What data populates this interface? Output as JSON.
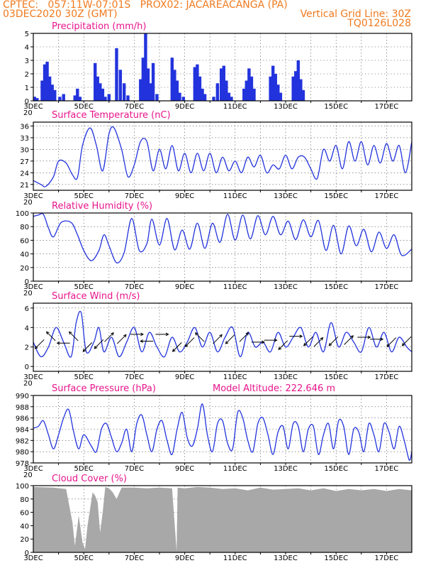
{
  "header": {
    "line1_left": "CPTEC:   057:11W-07:01S   PROX02: JACAREACANGA (PA)",
    "line2_left": "03DEC2020 30Z (GMT)",
    "line2_right": "Vertical Grid Line: 30Z",
    "line3_right": "TQ0126L028"
  },
  "x_axis": {
    "ticks": [
      "3DEC",
      "5DEC",
      "7DEC",
      "9DEC",
      "11DEC",
      "13DEC",
      "15DEC",
      "17DEC"
    ],
    "partial_label": "20"
  },
  "colors": {
    "line": "#2233dd",
    "bar": "#2233dd",
    "title": "#e8158c",
    "header": "#f07a1e",
    "cloud": "#a8a8a8"
  },
  "chart_data": [
    {
      "type": "bar",
      "title": "Precipitation (mm/h)",
      "ylim": [
        0,
        5
      ],
      "yticks": [
        "0",
        "1",
        "2",
        "3",
        "4",
        "5"
      ],
      "x": [
        3.05,
        3.15,
        3.35,
        3.45,
        3.55,
        3.65,
        3.75,
        3.85,
        4.05,
        4.2,
        4.65,
        4.75,
        4.85,
        5.45,
        5.55,
        5.65,
        5.75,
        5.85,
        6.0,
        6.3,
        6.45,
        6.6,
        6.75,
        7.25,
        7.35,
        7.45,
        7.55,
        7.65,
        7.75,
        7.9,
        8.5,
        8.6,
        8.7,
        8.8,
        8.95,
        9.4,
        9.5,
        9.6,
        9.7,
        9.8,
        10.15,
        10.3,
        10.45,
        10.55,
        10.65,
        10.75,
        10.85,
        11.35,
        11.45,
        11.55,
        11.65,
        11.75,
        12.4,
        12.5,
        12.6,
        12.7,
        12.8,
        13.3,
        13.4,
        13.5,
        13.6,
        13.7
      ],
      "values": [
        0.3,
        0.2,
        1.5,
        2.7,
        2.9,
        1.8,
        1.2,
        0.8,
        0.3,
        0.5,
        0.4,
        0.9,
        0.3,
        2.8,
        1.8,
        1.3,
        0.9,
        0.3,
        0.5,
        3.9,
        2.3,
        1.3,
        0.4,
        1.6,
        3.2,
        5.0,
        2.4,
        1.3,
        2.8,
        0.5,
        3.2,
        2.3,
        1.5,
        0.6,
        0.3,
        2.5,
        2.7,
        1.8,
        0.9,
        0.5,
        0.3,
        1.3,
        2.4,
        2.6,
        1.5,
        0.6,
        0.3,
        0.9,
        1.5,
        2.4,
        1.8,
        0.9,
        1.8,
        2.6,
        2.0,
        1.2,
        0.6,
        1.8,
        2.2,
        3.0,
        1.6,
        0.8
      ],
      "series_name": "precipitation"
    },
    {
      "type": "line",
      "title": "Surface Temperature (nC)",
      "ylim": [
        19.5,
        37
      ],
      "yticks": [
        "21",
        "24",
        "27",
        "30",
        "33",
        "36"
      ],
      "x": [
        3.0,
        3.3,
        3.5,
        3.8,
        4.0,
        4.3,
        4.55,
        4.75,
        4.95,
        5.25,
        5.5,
        5.75,
        6.0,
        6.2,
        6.5,
        6.75,
        7.0,
        7.25,
        7.5,
        7.75,
        8.0,
        8.25,
        8.5,
        8.75,
        9.0,
        9.25,
        9.5,
        9.75,
        10.0,
        10.25,
        10.5,
        10.75,
        11.0,
        11.25,
        11.5,
        11.75,
        12.0,
        12.25,
        12.5,
        12.75,
        13.0,
        13.25,
        13.5,
        13.75,
        14.0,
        14.25,
        14.5,
        14.75,
        15.0,
        15.25,
        15.5,
        15.75,
        16.0,
        16.25,
        16.5,
        16.75,
        17.0,
        17.25,
        17.5,
        17.75,
        18.0
      ],
      "values": [
        22,
        21,
        20.5,
        23,
        27,
        26.5,
        23.5,
        22.8,
        31,
        35.5,
        31,
        24.5,
        34,
        35.5,
        30,
        23,
        26,
        32,
        32,
        24.5,
        30,
        25,
        31,
        24.5,
        29,
        24,
        29,
        24.5,
        29,
        24,
        28,
        24.5,
        27,
        24,
        28,
        25.5,
        28.5,
        24,
        26,
        25,
        28.5,
        25,
        28,
        28,
        25,
        22.5,
        30,
        27,
        31,
        25,
        32,
        27,
        32,
        26,
        31,
        26.5,
        31.5,
        27,
        31,
        24,
        32
      ]
    },
    {
      "type": "line",
      "title": "Relative Humidity (%)",
      "ylim": [
        0,
        100
      ],
      "yticks": [
        "0",
        "20",
        "40",
        "60",
        "80",
        "100"
      ],
      "x": [
        3.0,
        3.2,
        3.4,
        3.6,
        3.8,
        4.1,
        4.5,
        4.75,
        5.0,
        5.3,
        5.6,
        5.8,
        6.0,
        6.3,
        6.6,
        6.9,
        7.2,
        7.5,
        7.7,
        8.0,
        8.3,
        8.6,
        8.9,
        9.2,
        9.5,
        9.8,
        10.1,
        10.4,
        10.7,
        11.0,
        11.3,
        11.6,
        11.9,
        12.2,
        12.5,
        12.8,
        13.1,
        13.4,
        13.7,
        14.0,
        14.3,
        14.6,
        14.9,
        15.2,
        15.5,
        15.8,
        16.1,
        16.4,
        16.7,
        17.0,
        17.3,
        17.6,
        18.0
      ],
      "values": [
        95,
        97,
        98,
        78,
        65,
        86,
        86,
        68,
        45,
        30,
        45,
        68,
        52,
        27,
        42,
        92,
        45,
        55,
        91,
        53,
        92,
        46,
        75,
        47,
        85,
        48,
        85,
        57,
        98,
        60,
        97,
        62,
        96,
        68,
        95,
        68,
        88,
        61,
        90,
        65,
        89,
        45,
        82,
        40,
        81,
        52,
        76,
        43,
        72,
        48,
        68,
        38,
        47
      ]
    },
    {
      "type": "line",
      "title": "Surface Wind (m/s)",
      "ylim": [
        -0.5,
        6.5
      ],
      "yticks": [
        "0",
        "2",
        "4",
        "6"
      ],
      "x": [
        3.0,
        3.3,
        3.6,
        3.9,
        4.2,
        4.5,
        4.7,
        4.9,
        5.1,
        5.4,
        5.6,
        5.8,
        6.1,
        6.4,
        6.7,
        7.0,
        7.3,
        7.6,
        7.9,
        8.2,
        8.5,
        8.8,
        9.1,
        9.4,
        9.7,
        10.0,
        10.3,
        10.6,
        10.9,
        11.2,
        11.5,
        11.8,
        12.1,
        12.4,
        12.7,
        13.0,
        13.3,
        13.6,
        13.9,
        14.2,
        14.5,
        14.8,
        15.1,
        15.4,
        15.7,
        16.0,
        16.3,
        16.6,
        16.9,
        17.2,
        17.5,
        17.8,
        18.0
      ],
      "values": [
        2.5,
        1.0,
        2.0,
        4.0,
        2.5,
        1.0,
        4.5,
        5.5,
        1.5,
        2.5,
        4.0,
        1.5,
        3.0,
        1.0,
        2.5,
        4.0,
        1.5,
        3.5,
        2.0,
        1.0,
        3.0,
        1.5,
        2.5,
        4.0,
        2.0,
        3.5,
        1.5,
        3.0,
        4.0,
        1.0,
        3.5,
        2.0,
        2.5,
        1.5,
        3.5,
        2.0,
        3.0,
        4.0,
        2.0,
        3.5,
        1.5,
        4.5,
        2.0,
        3.5,
        2.5,
        1.5,
        4.0,
        2.0,
        3.5,
        1.5,
        3.0,
        2.0,
        1.5
      ],
      "arrows": [
        {
          "x": 3.25,
          "y": 2.3,
          "dir": "SW"
        },
        {
          "x": 3.7,
          "y": 3.1,
          "dir": "NW"
        },
        {
          "x": 4.2,
          "y": 2.4,
          "dir": "W"
        },
        {
          "x": 4.6,
          "y": 3.1,
          "dir": "NW"
        },
        {
          "x": 5.15,
          "y": 2.0,
          "dir": "SW"
        },
        {
          "x": 5.6,
          "y": 2.3,
          "dir": "SW"
        },
        {
          "x": 6.0,
          "y": 3.0,
          "dir": "NE"
        },
        {
          "x": 6.5,
          "y": 2.8,
          "dir": "NE"
        },
        {
          "x": 7.1,
          "y": 3.3,
          "dir": "E"
        },
        {
          "x": 7.5,
          "y": 2.6,
          "dir": "W"
        },
        {
          "x": 8.1,
          "y": 3.3,
          "dir": "E"
        },
        {
          "x": 8.7,
          "y": 2.0,
          "dir": "SW"
        },
        {
          "x": 9.2,
          "y": 2.5,
          "dir": "SW"
        },
        {
          "x": 9.6,
          "y": 3.0,
          "dir": "NW"
        },
        {
          "x": 10.3,
          "y": 2.8,
          "dir": "NE"
        },
        {
          "x": 10.8,
          "y": 2.8,
          "dir": "SW"
        },
        {
          "x": 11.35,
          "y": 3.0,
          "dir": "NE"
        },
        {
          "x": 11.9,
          "y": 2.5,
          "dir": "E"
        },
        {
          "x": 12.4,
          "y": 2.7,
          "dir": "E"
        },
        {
          "x": 12.9,
          "y": 2.2,
          "dir": "SW"
        },
        {
          "x": 13.4,
          "y": 3.1,
          "dir": "E"
        },
        {
          "x": 13.9,
          "y": 2.6,
          "dir": "SW"
        },
        {
          "x": 14.3,
          "y": 2.5,
          "dir": "NE"
        },
        {
          "x": 14.9,
          "y": 2.6,
          "dir": "SW"
        },
        {
          "x": 15.5,
          "y": 2.7,
          "dir": "NE"
        },
        {
          "x": 16.1,
          "y": 3.0,
          "dir": "E"
        },
        {
          "x": 16.6,
          "y": 2.8,
          "dir": "E"
        },
        {
          "x": 17.2,
          "y": 2.5,
          "dir": "SW"
        },
        {
          "x": 17.8,
          "y": 2.6,
          "dir": "SW"
        }
      ]
    },
    {
      "type": "line",
      "title": "Surface Pressure (hPa)",
      "annotation": "Model Altitude: 222.646 m",
      "ylim": [
        978,
        990
      ],
      "yticks": [
        "978",
        "980",
        "982",
        "984",
        "986",
        "988",
        "990"
      ],
      "x": [
        3.0,
        3.2,
        3.4,
        3.6,
        3.8,
        4.0,
        4.2,
        4.4,
        4.6,
        4.8,
        5.0,
        5.3,
        5.5,
        5.7,
        5.9,
        6.1,
        6.3,
        6.5,
        6.7,
        6.9,
        7.1,
        7.3,
        7.5,
        7.7,
        7.9,
        8.1,
        8.3,
        8.5,
        8.7,
        8.9,
        9.1,
        9.3,
        9.5,
        9.7,
        9.9,
        10.1,
        10.3,
        10.5,
        10.7,
        10.9,
        11.1,
        11.3,
        11.5,
        11.7,
        11.9,
        12.1,
        12.3,
        12.5,
        12.7,
        12.9,
        13.1,
        13.3,
        13.5,
        13.7,
        13.9,
        14.1,
        14.3,
        14.5,
        14.7,
        14.9,
        15.1,
        15.3,
        15.5,
        15.7,
        15.9,
        16.1,
        16.3,
        16.5,
        16.7,
        16.9,
        17.1,
        17.3,
        17.5,
        17.7,
        17.9,
        18.0
      ],
      "values": [
        984.2,
        984.5,
        985.5,
        983,
        980.5,
        983,
        986,
        987.5,
        983.5,
        980.5,
        983,
        981,
        980,
        984,
        985,
        982.5,
        980,
        981.5,
        984,
        980,
        985,
        986.5,
        983,
        980,
        984,
        985.5,
        982,
        979.5,
        984,
        987,
        982.5,
        981,
        984,
        988.5,
        983,
        980,
        985,
        985.5,
        981.5,
        980.5,
        987,
        986,
        982,
        980,
        985,
        986,
        983,
        979.5,
        983.5,
        984.5,
        980.5,
        985,
        984.5,
        980,
        984,
        984.5,
        979.5,
        983,
        985,
        980.5,
        985.5,
        984.5,
        979.5,
        984,
        983.5,
        980,
        985,
        983,
        980,
        985,
        983.5,
        980.5,
        984.5,
        982,
        978.5,
        980
      ]
    },
    {
      "type": "area",
      "title": "Cloud Cover (%)",
      "ylim": [
        0,
        100
      ],
      "yticks": [
        "0",
        "20",
        "40",
        "60",
        "80",
        "100"
      ],
      "x": [
        3.0,
        3.8,
        4.3,
        4.55,
        4.65,
        4.8,
        4.95,
        5.05,
        5.15,
        5.35,
        5.45,
        5.55,
        5.65,
        5.75,
        5.85,
        6.0,
        6.15,
        6.3,
        6.5,
        7.0,
        7.5,
        8.0,
        8.5,
        8.68,
        8.72,
        9.0,
        9.5,
        10.0,
        10.5,
        11.0,
        11.5,
        12.0,
        12.5,
        13.0,
        13.5,
        14.0,
        14.5,
        15.0,
        15.5,
        16.0,
        16.5,
        17.0,
        17.5,
        18.0
      ],
      "values": [
        98,
        97,
        95,
        45,
        10,
        55,
        15,
        5,
        40,
        90,
        85,
        75,
        30,
        60,
        98,
        96,
        90,
        80,
        97,
        97,
        96,
        97,
        96,
        2,
        97,
        96,
        98,
        97,
        95,
        96,
        93,
        97,
        94,
        95,
        96,
        93,
        96,
        92,
        95,
        93,
        95,
        92,
        95,
        93
      ]
    }
  ]
}
